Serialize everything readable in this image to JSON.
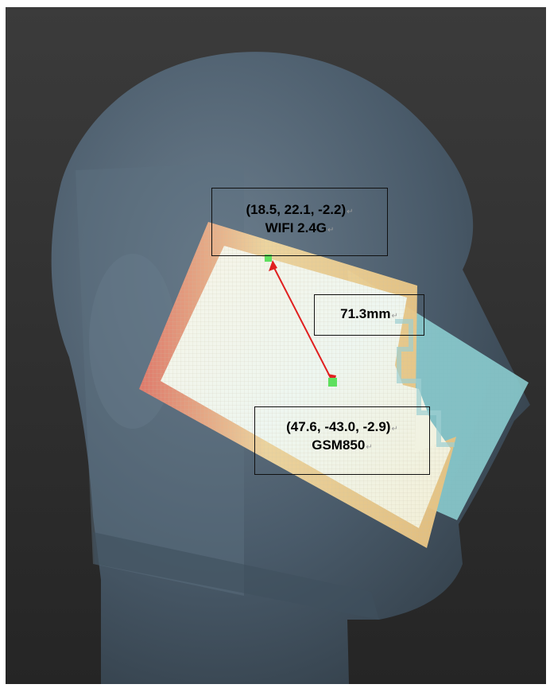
{
  "annotations": {
    "wifi": {
      "coords": "(18.5, 22.1, -2.2)",
      "band": "WIFI 2.4G"
    },
    "distance": {
      "value": "71.3mm"
    },
    "gsm": {
      "coords": "(47.6, -43.0, -2.9)",
      "band": "GSM850"
    }
  },
  "paragraph_mark": "↵",
  "colors": {
    "background_top": "#3a3a3a",
    "background_bottom": "#262626",
    "head": "#4c5f70",
    "wifi_patch": "#fff6cf",
    "gsm_patch": "#8fd4d6",
    "marker": "#5ee05e",
    "arrow": "#e02020"
  }
}
